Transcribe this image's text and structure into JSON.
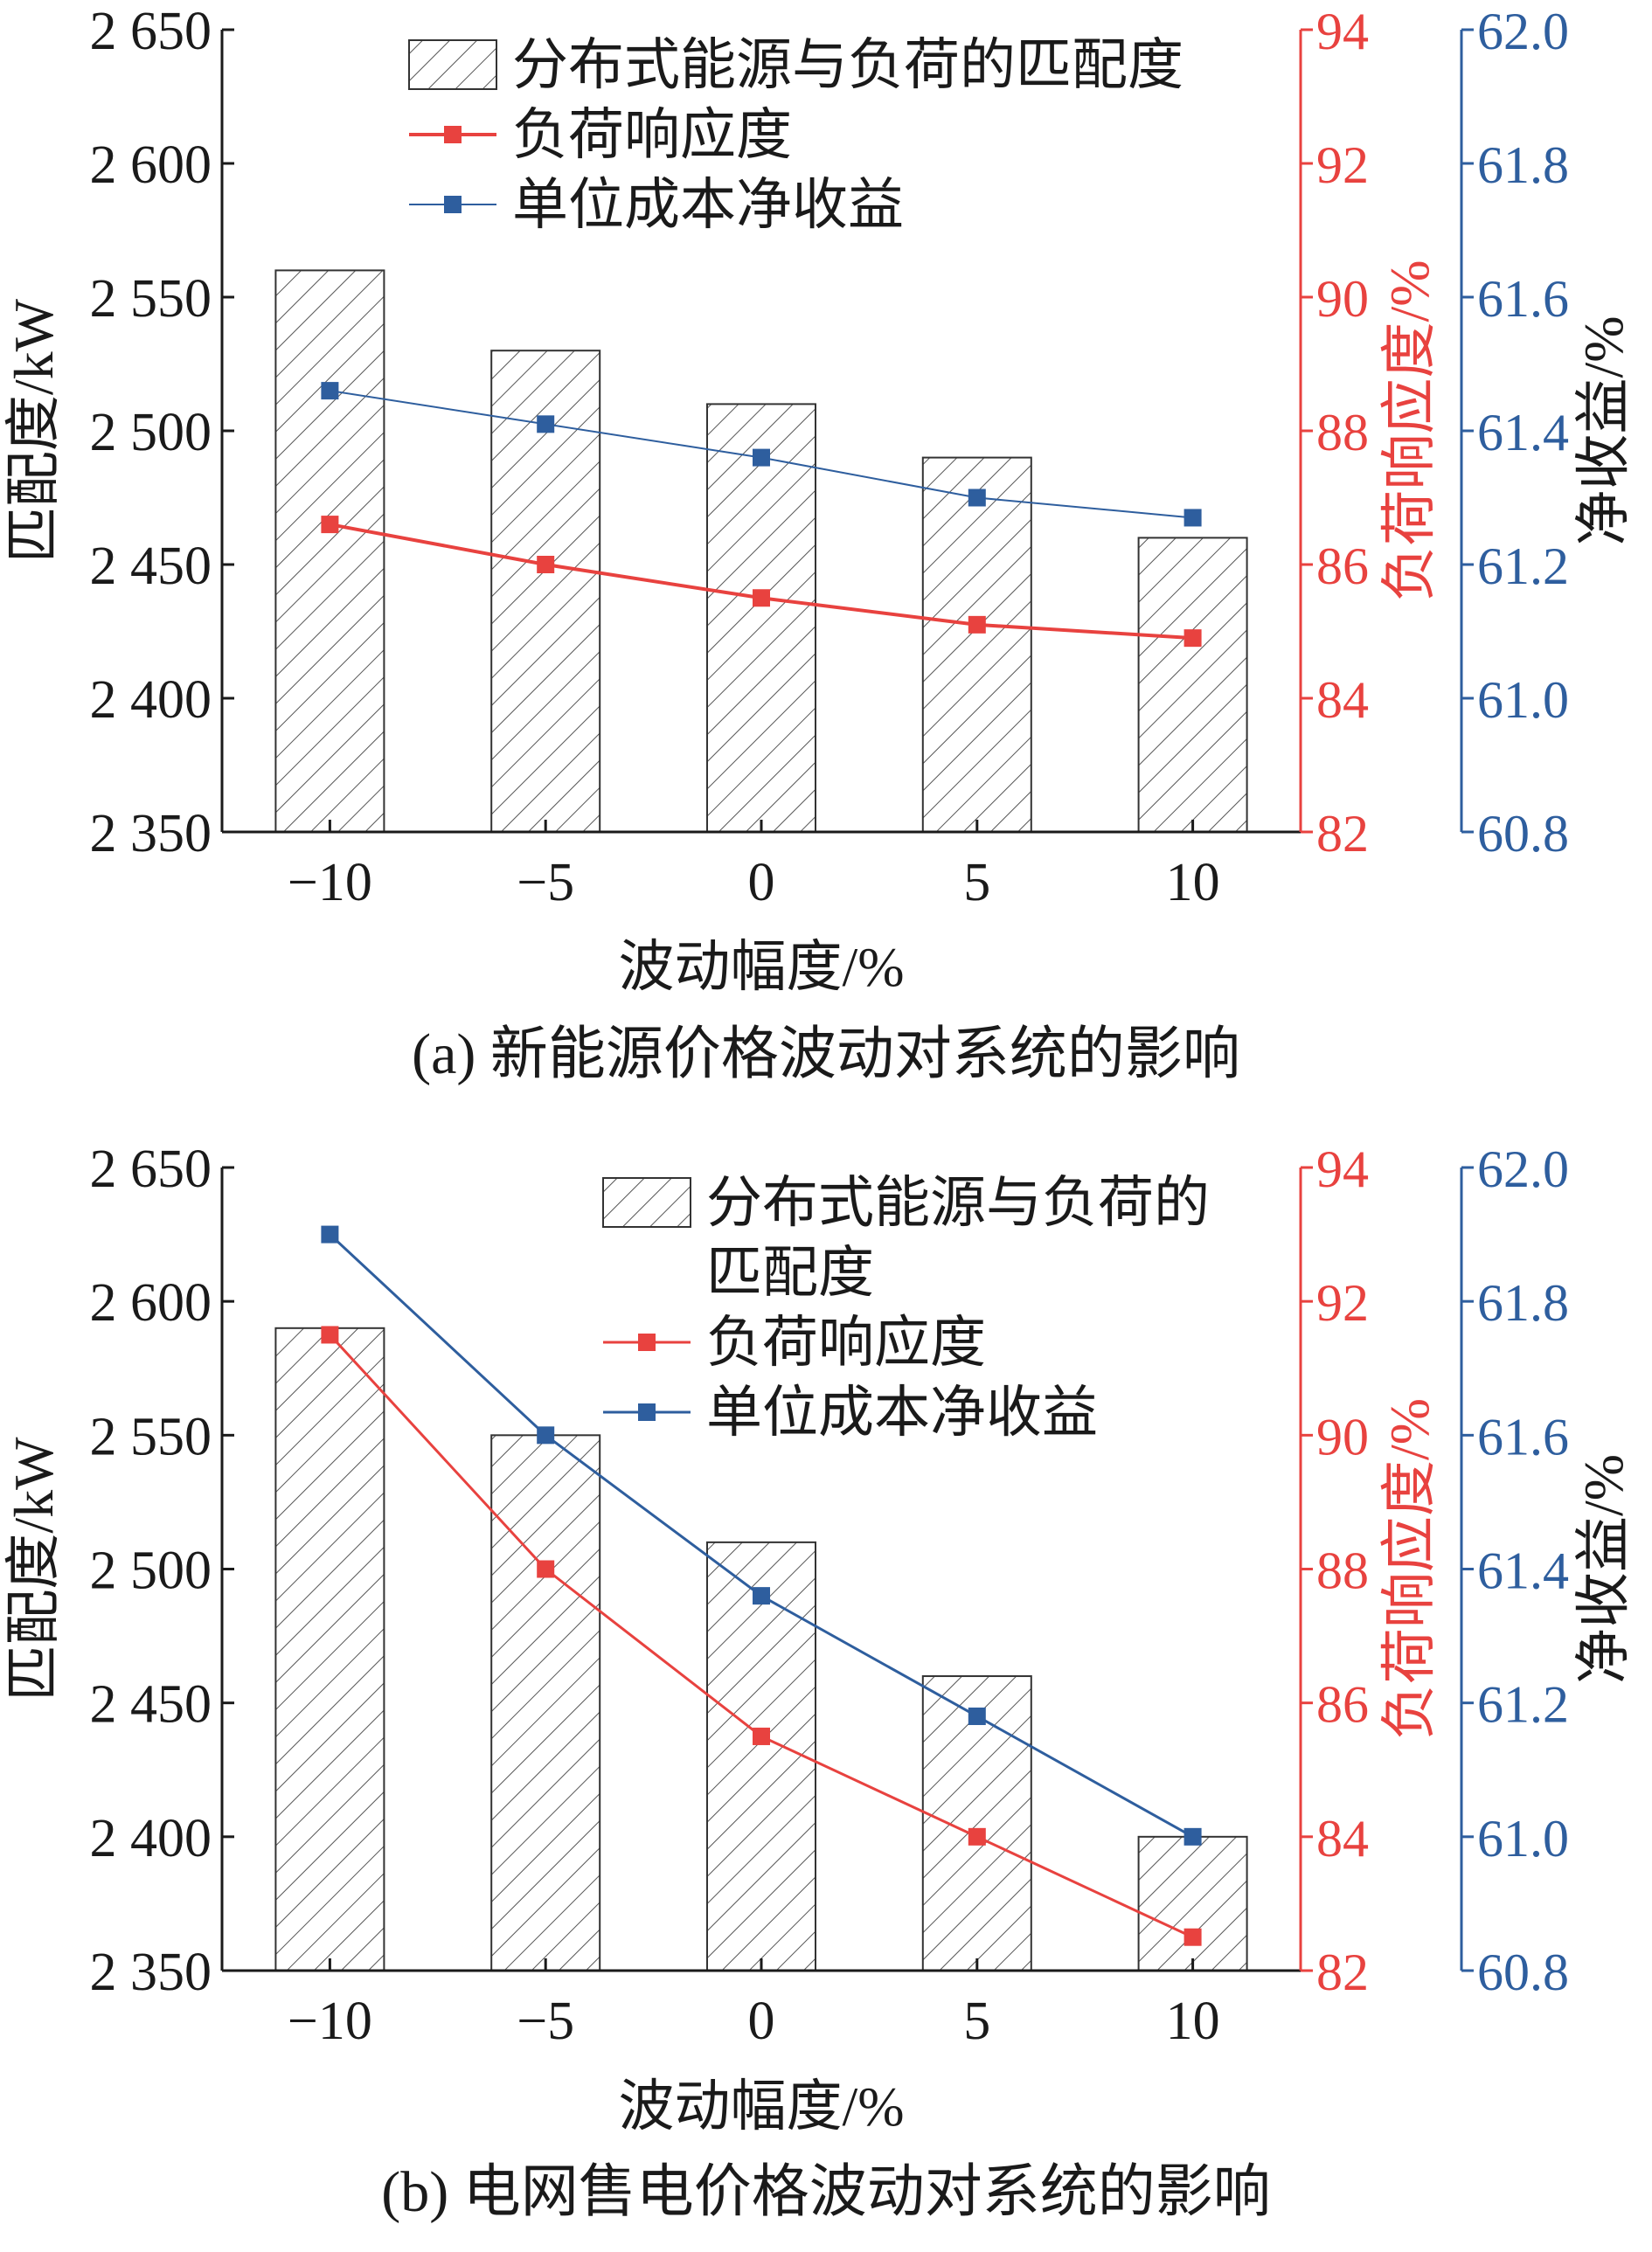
{
  "colors": {
    "bar_stroke": "#333333",
    "hatch": "#555555",
    "red": "#e8423f",
    "blue": "#2e5e9e",
    "text": "#1a1a1a"
  },
  "chart_data": [
    {
      "type": "bar",
      "caption": "(a) 新能源价格波动对系统的影响",
      "xlabel": "波动幅度/%",
      "ylabel_left": "匹配度/kW",
      "ylabel_right1": "负荷响应度/%",
      "ylabel_right2": "净收益/%",
      "categories": [
        "−10",
        "−5",
        "0",
        "5",
        "10"
      ],
      "ylim_left": [
        2350,
        2650
      ],
      "yticks_left": [
        "2 350",
        "2 400",
        "2 450",
        "2 500",
        "2 550",
        "2 600",
        "2 650"
      ],
      "ylim_right1": [
        82,
        94
      ],
      "yticks_right1": [
        "82",
        "84",
        "86",
        "88",
        "90",
        "92",
        "94"
      ],
      "ylim_right2": [
        60.8,
        62.0
      ],
      "yticks_right2": [
        "60.8",
        "61.0",
        "61.2",
        "61.4",
        "61.6",
        "61.8",
        "62.0"
      ],
      "legend": [
        "分布式能源与负荷的匹配度",
        "负荷响应度",
        "单位成本净收益"
      ],
      "legend_position": "top-right",
      "series": [
        {
          "name": "分布式能源与负荷的匹配度",
          "kind": "bar",
          "axis": "left",
          "values": [
            2560,
            2530,
            2510,
            2490,
            2460
          ]
        },
        {
          "name": "负荷响应度",
          "kind": "line",
          "axis": "right1",
          "values": [
            86.6,
            86.0,
            85.5,
            85.1,
            84.9
          ]
        },
        {
          "name": "单位成本净收益",
          "kind": "line",
          "axis": "right2",
          "values": [
            61.46,
            61.41,
            61.36,
            61.3,
            61.27
          ]
        }
      ]
    },
    {
      "type": "bar",
      "caption": "(b) 电网售电价格波动对系统的影响",
      "xlabel": "波动幅度/%",
      "ylabel_left": "匹配度/kW",
      "ylabel_right1": "负荷响应度/%",
      "ylabel_right2": "净收益/%",
      "categories": [
        "−10",
        "−5",
        "0",
        "5",
        "10"
      ],
      "ylim_left": [
        2350,
        2650
      ],
      "yticks_left": [
        "2 350",
        "2 400",
        "2 450",
        "2 500",
        "2 550",
        "2 600",
        "2 650"
      ],
      "ylim_right1": [
        82,
        94
      ],
      "yticks_right1": [
        "82",
        "84",
        "86",
        "88",
        "90",
        "92",
        "94"
      ],
      "ylim_right2": [
        60.8,
        62.0
      ],
      "yticks_right2": [
        "60.8",
        "61.0",
        "61.2",
        "61.4",
        "61.6",
        "61.8",
        "62.0"
      ],
      "legend": [
        "分布式能源与负荷的",
        "匹配度",
        "负荷响应度",
        "单位成本净收益"
      ],
      "legend_position": "top-right",
      "series": [
        {
          "name": "分布式能源与负荷的匹配度",
          "kind": "bar",
          "axis": "left",
          "values": [
            2590,
            2550,
            2510,
            2460,
            2400
          ]
        },
        {
          "name": "负荷响应度",
          "kind": "line",
          "axis": "right1",
          "values": [
            91.5,
            88.0,
            85.5,
            84.0,
            82.5
          ]
        },
        {
          "name": "单位成本净收益",
          "kind": "line",
          "axis": "right2",
          "values": [
            61.9,
            61.6,
            61.36,
            61.18,
            61.0
          ]
        }
      ]
    }
  ]
}
